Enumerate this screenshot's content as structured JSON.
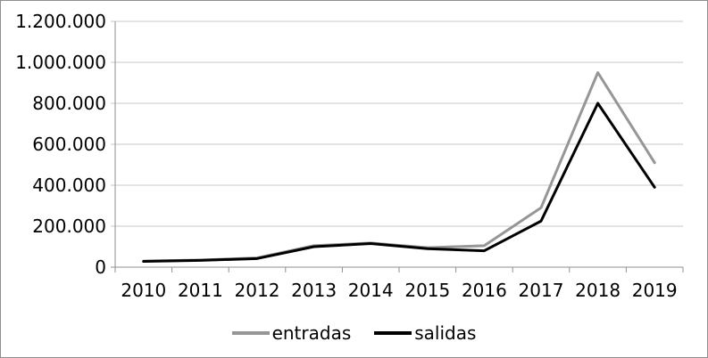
{
  "chart_data": {
    "type": "line",
    "title": "",
    "xlabel": "",
    "ylabel": "",
    "categories": [
      "2010",
      "2011",
      "2012",
      "2013",
      "2014",
      "2015",
      "2016",
      "2017",
      "2018",
      "2019"
    ],
    "series": [
      {
        "name": "entradas",
        "color": "#969696",
        "values": [
          30000,
          35000,
          45000,
          105000,
          118000,
          95000,
          105000,
          290000,
          950000,
          510000
        ]
      },
      {
        "name": "salidas",
        "color": "#000000",
        "values": [
          28000,
          33000,
          42000,
          100000,
          115000,
          90000,
          80000,
          225000,
          800000,
          390000
        ]
      }
    ],
    "ylim": [
      0,
      1200000
    ],
    "ytick_step": 200000,
    "ytick_labels": [
      "0",
      "200.000",
      "400.000",
      "600.000",
      "800.000",
      "1.000.000",
      "1.200.000"
    ],
    "grid": true,
    "legend_position": "bottom"
  },
  "style_colors": {
    "gridline": "#c8c8c8",
    "axis": "#8f8f8f",
    "frame_border": "#8f8f8f",
    "text": "#000000"
  }
}
